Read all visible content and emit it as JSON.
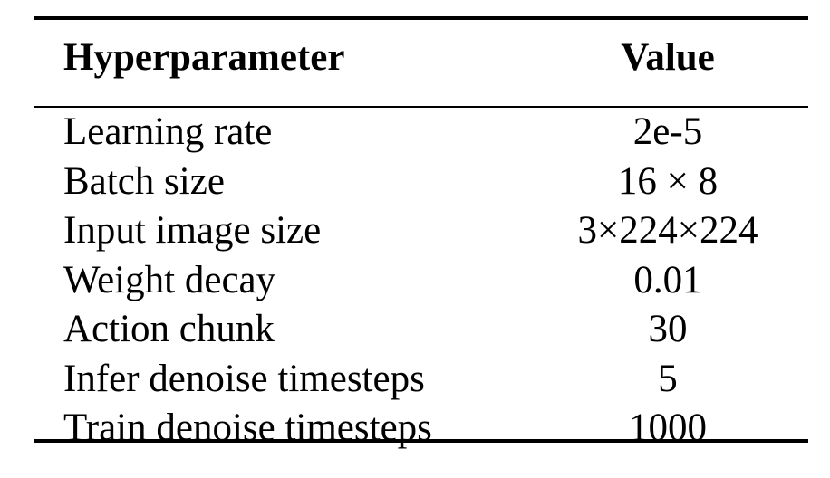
{
  "table": {
    "headers": [
      "Hyperparameter",
      "Value"
    ],
    "rows": [
      [
        "Learning rate",
        "2e-5"
      ],
      [
        "Batch size",
        "16 × 8"
      ],
      [
        "Input image size",
        "3×224×224"
      ],
      [
        "Weight decay",
        "0.01"
      ],
      [
        "Action chunk",
        "30"
      ],
      [
        "Infer denoise timesteps",
        "5"
      ],
      [
        "Train denoise timesteps",
        "1000"
      ]
    ]
  }
}
